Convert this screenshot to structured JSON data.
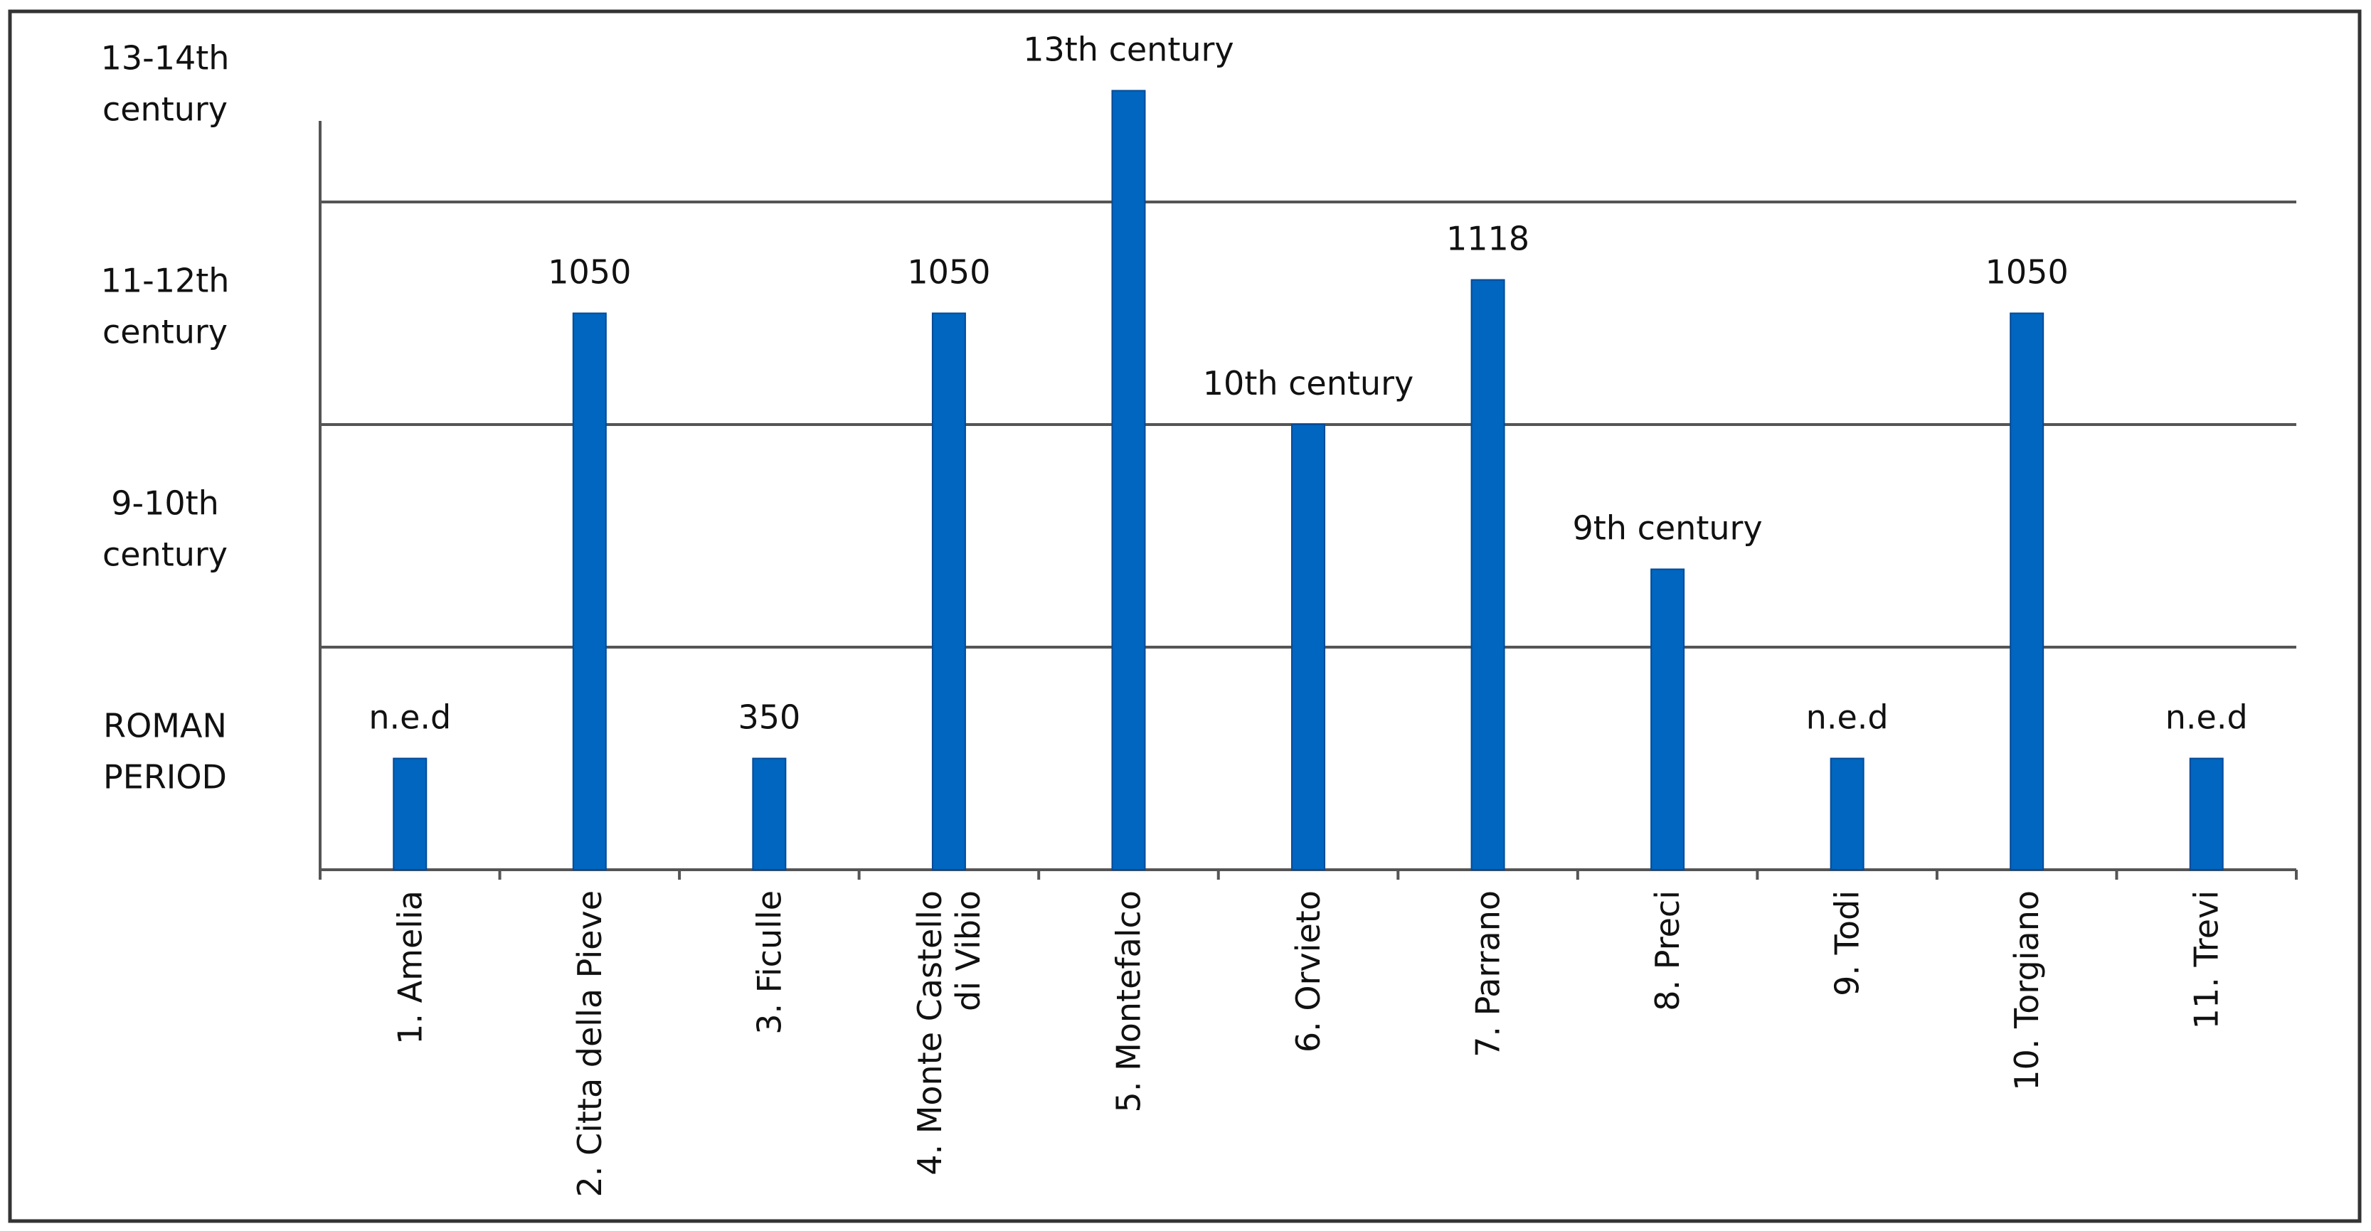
{
  "chart_data": {
    "type": "bar",
    "categories": [
      [
        "1. Amelia"
      ],
      [
        "2. Citta della Pieve"
      ],
      [
        "3. Ficulle"
      ],
      [
        "4. Monte Castello",
        "di Vibio"
      ],
      [
        "5. Montefalco"
      ],
      [
        "6. Orvieto"
      ],
      [
        "7. Parrano"
      ],
      [
        "8. Preci"
      ],
      [
        "9. Todi"
      ],
      [
        "10. Torgiano"
      ],
      [
        "11. Trevi"
      ]
    ],
    "values": [
      0.5,
      2.5,
      0.5,
      2.5,
      3.5,
      2.0,
      2.65,
      1.35,
      0.5,
      2.5,
      0.5
    ],
    "data_labels": [
      "n.e.d",
      "1050",
      "350",
      "1050",
      "13th century",
      "10th century",
      "1118",
      "9th century",
      "n.e.d",
      "1050",
      "n.e.d"
    ],
    "y_tick_labels": [
      [
        "ROMAN",
        "PERIOD"
      ],
      [
        "9-10th",
        "century"
      ],
      [
        "11-12th",
        "century"
      ],
      [
        "13-14th",
        "century"
      ]
    ],
    "ylim": [
      0,
      3.5
    ],
    "gridlines": [
      1,
      2,
      3
    ],
    "grid": true,
    "legend": "none",
    "bar_color": "#0066c0",
    "title": "",
    "xlabel": "",
    "ylabel": ""
  }
}
